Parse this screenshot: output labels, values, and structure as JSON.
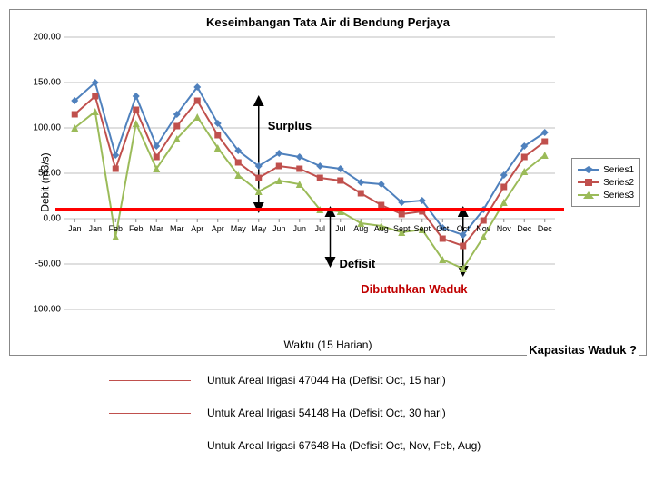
{
  "chart": {
    "type": "line",
    "title": "Keseimbangan Tata Air di Bendung Perjaya",
    "y_label": "Debit (m3/s)",
    "x_label": "Waktu (15 Harian)",
    "ylim": [
      -100,
      200
    ],
    "ytick_step": 50,
    "y_ticks": [
      -100,
      -50,
      0,
      50,
      100,
      150,
      200
    ],
    "y_tick_labels": [
      "-100.00",
      "-50.00",
      "0.00",
      "50.00",
      "100.00",
      "150.00",
      "200.00"
    ],
    "x_categories": [
      "Jan",
      "Jan",
      "Feb",
      "Feb",
      "Mar",
      "Mar",
      "Apr",
      "Apr",
      "May",
      "May",
      "Jun",
      "Jun",
      "Jul",
      "Jul",
      "Aug",
      "Aug",
      "Sept",
      "Sept",
      "Oct",
      "Oct",
      "Nov",
      "Nov",
      "Dec",
      "Dec"
    ],
    "guide_line_value": 10,
    "guide_line_color": "#ff0000",
    "grid_color": "#bfbfbf",
    "background_color": "#ffffff",
    "series": [
      {
        "name": "Series1",
        "color": "#4f81bd",
        "marker": "diamond",
        "values": [
          130,
          150,
          70,
          135,
          80,
          115,
          145,
          105,
          75,
          58,
          72,
          68,
          58,
          55,
          40,
          38,
          18,
          20,
          -10,
          -18,
          10,
          48,
          80,
          95
        ]
      },
      {
        "name": "Series2",
        "color": "#c0504d",
        "marker": "square",
        "values": [
          115,
          135,
          55,
          120,
          68,
          102,
          130,
          92,
          62,
          45,
          58,
          55,
          45,
          42,
          28,
          15,
          5,
          8,
          -22,
          -30,
          -2,
          35,
          68,
          85
        ]
      },
      {
        "name": "Series3",
        "color": "#9bbb59",
        "marker": "triangle",
        "values": [
          100,
          118,
          -20,
          105,
          55,
          88,
          112,
          78,
          48,
          30,
          42,
          38,
          10,
          8,
          -5,
          -8,
          -15,
          -12,
          -45,
          -55,
          -20,
          18,
          52,
          70
        ]
      }
    ],
    "annotations": {
      "surplus": "Surplus",
      "defisit": "Defisit",
      "waduk": "Dibutuhkan Waduk",
      "kapasitas": "Kapasitas Waduk ?"
    }
  },
  "footnotes": [
    {
      "color": "#c0504d",
      "text": "Untuk Areal Irigasi 47044 Ha  (Defisit Oct, 15 hari)"
    },
    {
      "color": "#c0504d",
      "text": "Untuk Areal Irigasi 54148 Ha (Defisit  Oct, 30 hari)"
    },
    {
      "color": "#9bbb59",
      "text": "Untuk Areal Irigasi 67648 Ha (Defisit Oct, Nov, Feb, Aug)"
    }
  ]
}
